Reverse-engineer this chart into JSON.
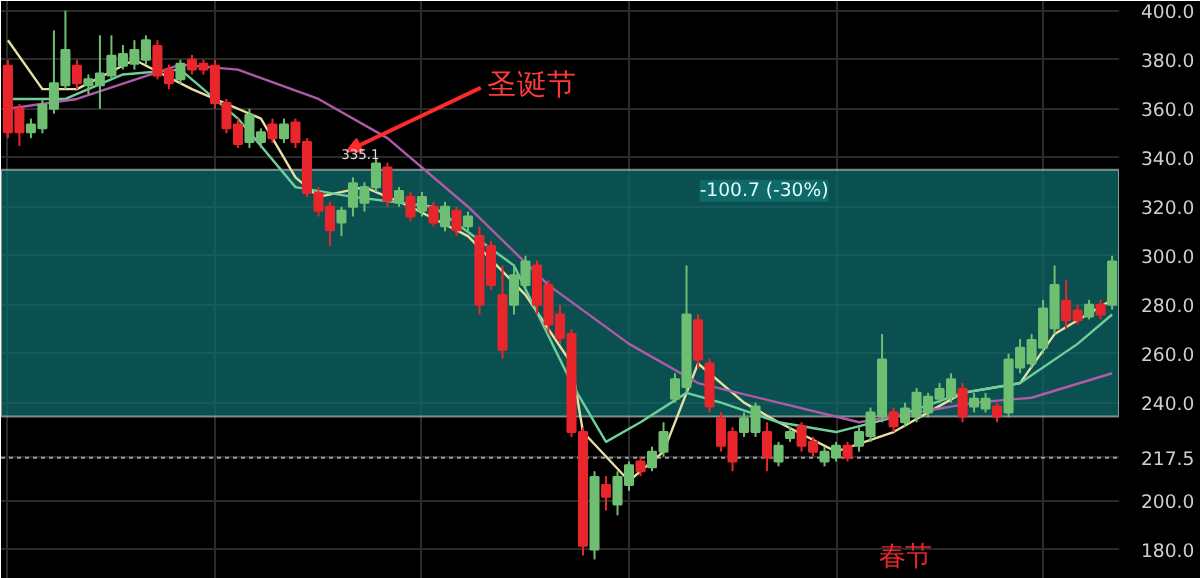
{
  "chart_data": {
    "type": "candlestick",
    "categories": [
      null,
      null,
      null,
      null,
      null,
      null,
      null,
      null,
      null,
      null,
      null,
      null,
      null,
      null,
      null,
      null,
      null,
      null,
      null,
      null,
      null,
      null,
      null,
      null,
      null,
      null,
      null,
      null,
      null,
      null,
      null,
      null,
      null,
      null,
      null,
      null,
      null,
      null,
      null,
      null,
      null,
      null,
      null,
      null,
      null,
      null,
      null,
      null,
      null,
      null,
      null,
      null,
      null,
      null,
      null,
      null,
      null,
      null,
      null,
      null,
      null,
      null,
      null,
      null,
      null,
      null,
      null,
      null,
      null,
      null,
      null,
      null,
      null,
      null,
      null,
      null,
      null,
      null,
      null,
      null,
      null,
      null,
      null,
      null,
      null,
      null,
      null,
      null,
      null,
      null,
      null,
      null,
      null,
      null,
      null,
      null,
      null
    ],
    "ohlc": [
      [
        377.6,
        380,
        348,
        350.4
      ],
      [
        360,
        362,
        344.8,
        350.4
      ],
      [
        350.4,
        356,
        348,
        353.6
      ],
      [
        352,
        364,
        350,
        361.6
      ],
      [
        360,
        392,
        358,
        370.4
      ],
      [
        369.6,
        400,
        368,
        384
      ],
      [
        377.6,
        380,
        368,
        370.4
      ],
      [
        369.6,
        374,
        366,
        372
      ],
      [
        369.6,
        390,
        360,
        374.4
      ],
      [
        373.6,
        390,
        372,
        381.6
      ],
      [
        377.6,
        386,
        376,
        382.4
      ],
      [
        378.4,
        388,
        376,
        384
      ],
      [
        380,
        390,
        378,
        388
      ],
      [
        385.6,
        388,
        372,
        373.6
      ],
      [
        376,
        378,
        368,
        370.4
      ],
      [
        372,
        380,
        370,
        378.4
      ],
      [
        380,
        382,
        374,
        376
      ],
      [
        378.4,
        380,
        374,
        376
      ],
      [
        377.6,
        380,
        360,
        362.4
      ],
      [
        362.4,
        364,
        350,
        352
      ],
      [
        353.6,
        356,
        344,
        345.6
      ],
      [
        346.4,
        360,
        344,
        357.6
      ],
      [
        346.4,
        352,
        344,
        350.4
      ],
      [
        353.6,
        356,
        346,
        348
      ],
      [
        348,
        356,
        346,
        353.6
      ],
      [
        354.4,
        356,
        344,
        346.4
      ],
      [
        346.4,
        348,
        324,
        325.6
      ],
      [
        325.6,
        328,
        316,
        318.4
      ],
      [
        320,
        322,
        304,
        310.4
      ],
      [
        313.6,
        320,
        308,
        318.4
      ],
      [
        320,
        332,
        316,
        329.6
      ],
      [
        321.6,
        330,
        318,
        328
      ],
      [
        328,
        340,
        326,
        337.6
      ],
      [
        336,
        338,
        320,
        322.4
      ],
      [
        321.6,
        328,
        320,
        326.4
      ],
      [
        324,
        326,
        314,
        316
      ],
      [
        318.4,
        326,
        316,
        324
      ],
      [
        320,
        322,
        312,
        313.6
      ],
      [
        312,
        322,
        310,
        320
      ],
      [
        318.4,
        320,
        308,
        310.4
      ],
      [
        312,
        318,
        310,
        316
      ],
      [
        308,
        312,
        276,
        280
      ],
      [
        304,
        306,
        286,
        288
      ],
      [
        284,
        296,
        258,
        261.6
      ],
      [
        280,
        296,
        276,
        292
      ],
      [
        288,
        300,
        286,
        297.6
      ],
      [
        296,
        298,
        276,
        280
      ],
      [
        288,
        290,
        268,
        272
      ],
      [
        276,
        280,
        264,
        266.4
      ],
      [
        268,
        270,
        226,
        228
      ],
      [
        228,
        230,
        177.6,
        181.6
      ],
      [
        180,
        212,
        176,
        209.6
      ],
      [
        206.4,
        210,
        196,
        201.6
      ],
      [
        198.4,
        212,
        194,
        209.6
      ],
      [
        206.4,
        216,
        204,
        214.4
      ],
      [
        216,
        218,
        210,
        212
      ],
      [
        213.6,
        222,
        212,
        220
      ],
      [
        220,
        232,
        218,
        228
      ],
      [
        241.6,
        252,
        240,
        249.6
      ],
      [
        246.4,
        296,
        244,
        276
      ],
      [
        273.6,
        276,
        254,
        257.6
      ],
      [
        256,
        258,
        236,
        238.4
      ],
      [
        233.6,
        236,
        220,
        222.4
      ],
      [
        228,
        230,
        212,
        216
      ],
      [
        228,
        236,
        226,
        233.6
      ],
      [
        228,
        240,
        226,
        238.4
      ],
      [
        228,
        232,
        212,
        217.6
      ],
      [
        216,
        224,
        214,
        222.4
      ],
      [
        225.6,
        230,
        224,
        228
      ],
      [
        230.4,
        232,
        220,
        222.4
      ],
      [
        224,
        226,
        218,
        220
      ],
      [
        216,
        222,
        214,
        220
      ],
      [
        217.6,
        224,
        216,
        222.4
      ],
      [
        222.4,
        224,
        216,
        217.6
      ],
      [
        222.4,
        230,
        220,
        228
      ],
      [
        226.4,
        238,
        224,
        236
      ],
      [
        234.4,
        268,
        232,
        257.6
      ],
      [
        236,
        238,
        228,
        230.4
      ],
      [
        232,
        240,
        230,
        237.6
      ],
      [
        234.4,
        246,
        232,
        244
      ],
      [
        236,
        244,
        234,
        242.4
      ],
      [
        241.6,
        248,
        240,
        245.6
      ],
      [
        242.4,
        252,
        240,
        249.6
      ],
      [
        245.6,
        248,
        232,
        234.4
      ],
      [
        238.4,
        244,
        236,
        241.6
      ],
      [
        237.6,
        244,
        236,
        241.6
      ],
      [
        238.4,
        240,
        232,
        234.4
      ],
      [
        236,
        260,
        234,
        257.6
      ],
      [
        254.4,
        266,
        252,
        262.4
      ],
      [
        256,
        268,
        254,
        265.6
      ],
      [
        262.4,
        282,
        260,
        278.4
      ],
      [
        270.4,
        296,
        268,
        288
      ],
      [
        281.6,
        290,
        270,
        273.6
      ],
      [
        277.6,
        280,
        272,
        273.6
      ],
      [
        275.2,
        282,
        274,
        280
      ],
      [
        280,
        282,
        274,
        276
      ],
      [
        280,
        300,
        278,
        297.6
      ]
    ],
    "colors": [
      "#e8262b",
      "#e8262b",
      "#6fbf73",
      "#6fbf73",
      "#6fbf73",
      "#6fbf73",
      "#e8262b",
      "#6fbf73",
      "#6fbf73",
      "#6fbf73",
      "#6fbf73",
      "#6fbf73",
      "#6fbf73",
      "#e8262b",
      "#e8262b",
      "#6fbf73",
      "#e8262b",
      "#e8262b",
      "#e8262b",
      "#e8262b",
      "#e8262b",
      "#6fbf73",
      "#6fbf73",
      "#e8262b",
      "#6fbf73",
      "#e8262b",
      "#e8262b",
      "#e8262b",
      "#e8262b",
      "#6fbf73",
      "#6fbf73",
      "#6fbf73",
      "#6fbf73",
      "#e8262b",
      "#6fbf73",
      "#e8262b",
      "#6fbf73",
      "#e8262b",
      "#6fbf73",
      "#e8262b",
      "#6fbf73",
      "#e8262b",
      "#e8262b",
      "#e8262b",
      "#6fbf73",
      "#6fbf73",
      "#e8262b",
      "#e8262b",
      "#e8262b",
      "#e8262b",
      "#e8262b",
      "#6fbf73",
      "#e8262b",
      "#6fbf73",
      "#6fbf73",
      "#e8262b",
      "#6fbf73",
      "#6fbf73",
      "#6fbf73",
      "#6fbf73",
      "#e8262b",
      "#e8262b",
      "#e8262b",
      "#e8262b",
      "#6fbf73",
      "#6fbf73",
      "#e8262b",
      "#6fbf73",
      "#6fbf73",
      "#e8262b",
      "#e8262b",
      "#6fbf73",
      "#6fbf73",
      "#e8262b",
      "#6fbf73",
      "#6fbf73",
      "#6fbf73",
      "#e8262b",
      "#6fbf73",
      "#6fbf73",
      "#6fbf73",
      "#6fbf73",
      "#6fbf73",
      "#e8262b",
      "#6fbf73",
      "#6fbf73",
      "#e8262b",
      "#6fbf73",
      "#6fbf73",
      "#6fbf73",
      "#6fbf73",
      "#6fbf73",
      "#e8262b",
      "#e8262b",
      "#6fbf73",
      "#e8262b",
      "#6fbf73"
    ],
    "series": [
      {
        "type": "line",
        "color": "#e6dfa0",
        "values": [
          388,
          null,
          null,
          368,
          null,
          null,
          368,
          null,
          null,
          null,
          null,
          380,
          null,
          null,
          null,
          null,
          368,
          null,
          null,
          null,
          null,
          null,
          356,
          null,
          null,
          332,
          null,
          324,
          null,
          null,
          null,
          328,
          null,
          null,
          null,
          320,
          null,
          null,
          null,
          null,
          308,
          null,
          null,
          null,
          null,
          284,
          null,
          null,
          null,
          256,
          228,
          null,
          null,
          null,
          208,
          null,
          null,
          220,
          null,
          null,
          256,
          null,
          null,
          null,
          240,
          null,
          null,
          232,
          null,
          null,
          null,
          null,
          220,
          null,
          null,
          null,
          null,
          228,
          null,
          null,
          null,
          null,
          null,
          244,
          null,
          null,
          null,
          null,
          248,
          null,
          null,
          268,
          null,
          null,
          null,
          null,
          282
        ]
      },
      {
        "type": "line",
        "color": "#6fcf9a",
        "values": [
          364,
          null,
          null,
          null,
          null,
          364,
          null,
          null,
          null,
          null,
          374,
          null,
          null,
          null,
          null,
          376,
          null,
          null,
          null,
          null,
          356,
          null,
          null,
          null,
          null,
          328,
          null,
          null,
          null,
          null,
          324,
          null,
          null,
          null,
          null,
          null,
          null,
          320,
          null,
          null,
          null,
          null,
          null,
          null,
          296,
          null,
          null,
          null,
          null,
          248,
          null,
          null,
          224,
          null,
          null,
          232,
          null,
          null,
          null,
          244,
          null,
          null,
          240,
          null,
          null,
          null,
          null,
          232,
          null,
          null,
          null,
          null,
          228,
          null,
          null,
          null,
          null,
          234,
          null,
          null,
          null,
          null,
          null,
          244,
          null,
          null,
          null,
          null,
          248,
          null,
          null,
          null,
          null,
          264,
          null,
          null,
          276
        ]
      },
      {
        "type": "line",
        "color": "#b05aa8",
        "values": [
          360,
          null,
          null,
          null,
          null,
          null,
          364,
          null,
          null,
          null,
          null,
          null,
          null,
          null,
          null,
          378,
          null,
          null,
          null,
          null,
          376,
          null,
          null,
          null,
          null,
          null,
          null,
          364,
          null,
          null,
          null,
          null,
          null,
          348,
          null,
          null,
          null,
          null,
          null,
          null,
          320,
          null,
          null,
          null,
          null,
          null,
          null,
          288,
          null,
          null,
          null,
          null,
          null,
          null,
          264,
          null,
          null,
          null,
          null,
          null,
          248,
          null,
          null,
          null,
          null,
          null,
          null,
          240,
          null,
          null,
          null,
          null,
          null,
          null,
          232,
          null,
          null,
          null,
          null,
          236,
          null,
          null,
          null,
          null,
          240,
          null,
          null,
          null,
          null,
          242,
          null,
          null,
          null,
          null,
          null,
          null,
          252
        ]
      }
    ],
    "ylim": [
      168,
      404
    ],
    "yticks": [
      {
        "value": 180,
        "label": "180.0"
      },
      {
        "value": 200,
        "label": "200.0"
      },
      217.5,
      {
        "value": 240,
        "label": "240.0"
      },
      {
        "value": 260,
        "label": "260.0"
      },
      {
        "value": 280,
        "label": "280.0"
      },
      {
        "value": 300,
        "label": "300.0"
      },
      {
        "value": 320,
        "label": "320.0"
      },
      {
        "value": 340,
        "label": "340.0"
      },
      {
        "value": 360,
        "label": "360.0"
      },
      {
        "value": 380,
        "label": "380.0"
      },
      {
        "value": 400,
        "label": "400.0"
      }
    ],
    "tick_labels": "y",
    "grid": true,
    "bands": [
      {
        "axis": "y",
        "from": 234.4,
        "to": 335.1,
        "label": "-100.7 (-30%)",
        "color": "#0f6b6b"
      }
    ],
    "ref_lines": [
      {
        "axis": "y",
        "value": 217.5,
        "line_style": "dotted",
        "color": "#9a9a9a"
      }
    ],
    "annotations": [
      "圣诞节",
      "335.1",
      "春节"
    ]
  }
}
